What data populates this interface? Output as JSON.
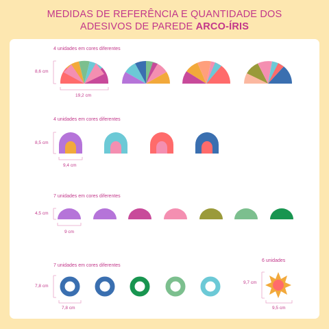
{
  "title": {
    "line1": "MEDIDAS DE REFERÊNCIA E QUANTIDADE DOS",
    "line2_prefix": "ADESIVOS DE PAREDE",
    "line2_bold": "ARCO-ÍRIS"
  },
  "sections": {
    "rainbows_large": {
      "caption": "4 unidades em cores diferentes",
      "height": "8,6 cm",
      "width": "19,2 cm"
    },
    "arches": {
      "caption": "4 unidades em cores diferentes",
      "height": "8,5 cm",
      "width": "9,4 cm"
    },
    "half_circles": {
      "caption": "7 unidades em cores diferentes",
      "height": "4,5 cm",
      "width": "9 cm"
    },
    "rings": {
      "caption": "7 unidades em cores diferentes",
      "height": "7,8 cm",
      "width": "7,8 cm"
    },
    "suns": {
      "caption": "6 unidades",
      "height": "9,7 cm",
      "width": "9,5 cm"
    }
  },
  "colors": {
    "background": "#fde7b0",
    "accent": "#c2378a",
    "palette": [
      "#ff6b6b",
      "#f48fb1",
      "#b574d9",
      "#6cc9d6",
      "#3a6fb0",
      "#7cbf8e",
      "#f2a93b",
      "#9a9a3a",
      "#c84a9a",
      "#fbb8a0",
      "#189550",
      "#ff9f7c"
    ]
  }
}
